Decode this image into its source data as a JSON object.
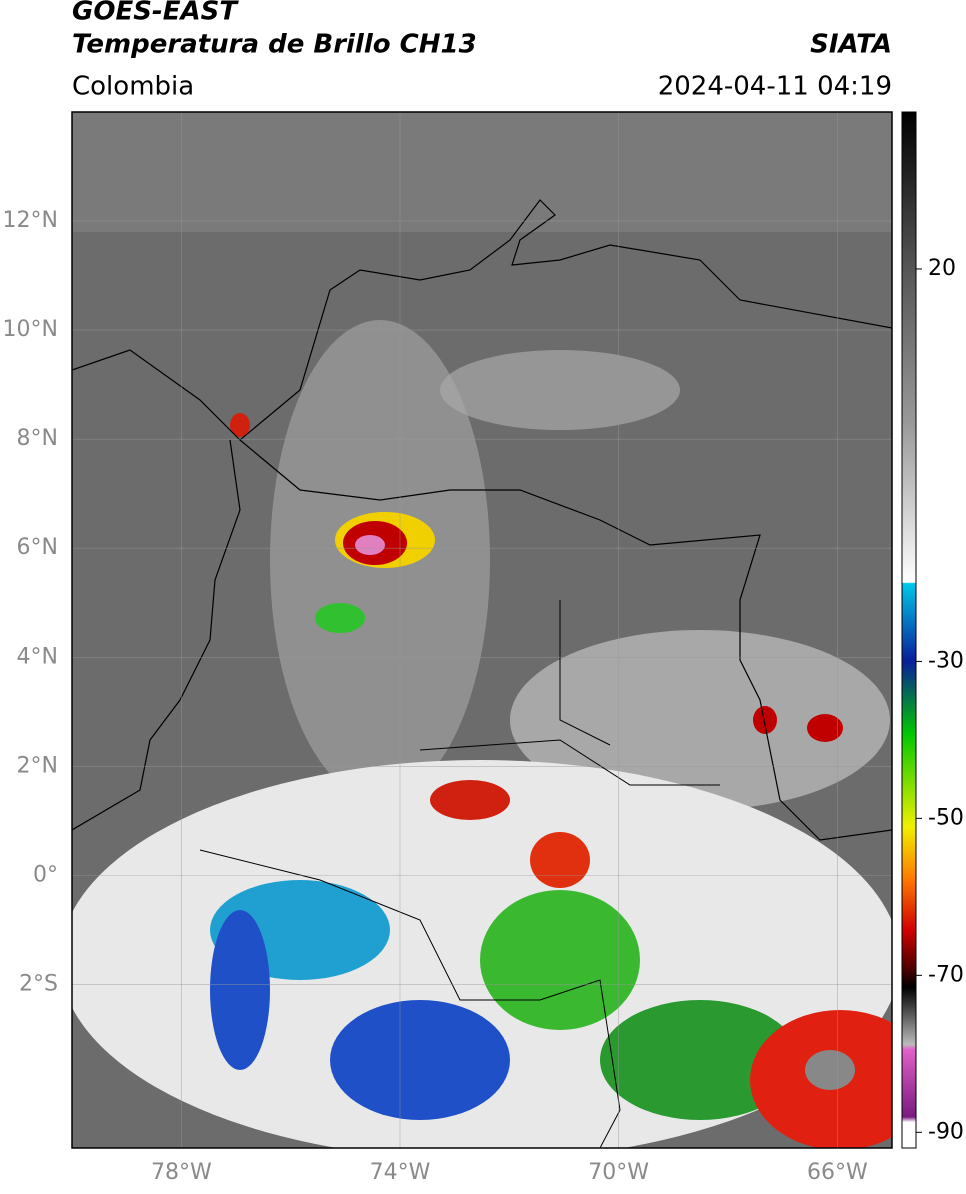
{
  "header": {
    "title": "GOES-EAST",
    "subtitle": "Temperatura de Brillo CH13",
    "source": "SIATA",
    "region": "Colombia",
    "datetime": "2024-04-11 04:19"
  },
  "map": {
    "lonlim": [
      -80,
      -65
    ],
    "latlim": [
      -5,
      14
    ],
    "lonticks": [
      {
        "value": -78,
        "label": "78°W"
      },
      {
        "value": -74,
        "label": "74°W"
      },
      {
        "value": -70,
        "label": "70°W"
      },
      {
        "value": -66,
        "label": "66°W"
      }
    ],
    "latticks": [
      {
        "value": 12,
        "label": "12°N"
      },
      {
        "value": 10,
        "label": "10°N"
      },
      {
        "value": 8,
        "label": "8°N"
      },
      {
        "value": 6,
        "label": "6°N"
      },
      {
        "value": 4,
        "label": "4°N"
      },
      {
        "value": 2,
        "label": "2°N"
      },
      {
        "value": 0,
        "label": "0°"
      },
      {
        "value": -2,
        "label": "2°S"
      }
    ]
  },
  "colorbar": {
    "lim": [
      -92,
      40
    ],
    "ticks": [
      20,
      -30,
      -50,
      -70,
      -90
    ]
  }
}
